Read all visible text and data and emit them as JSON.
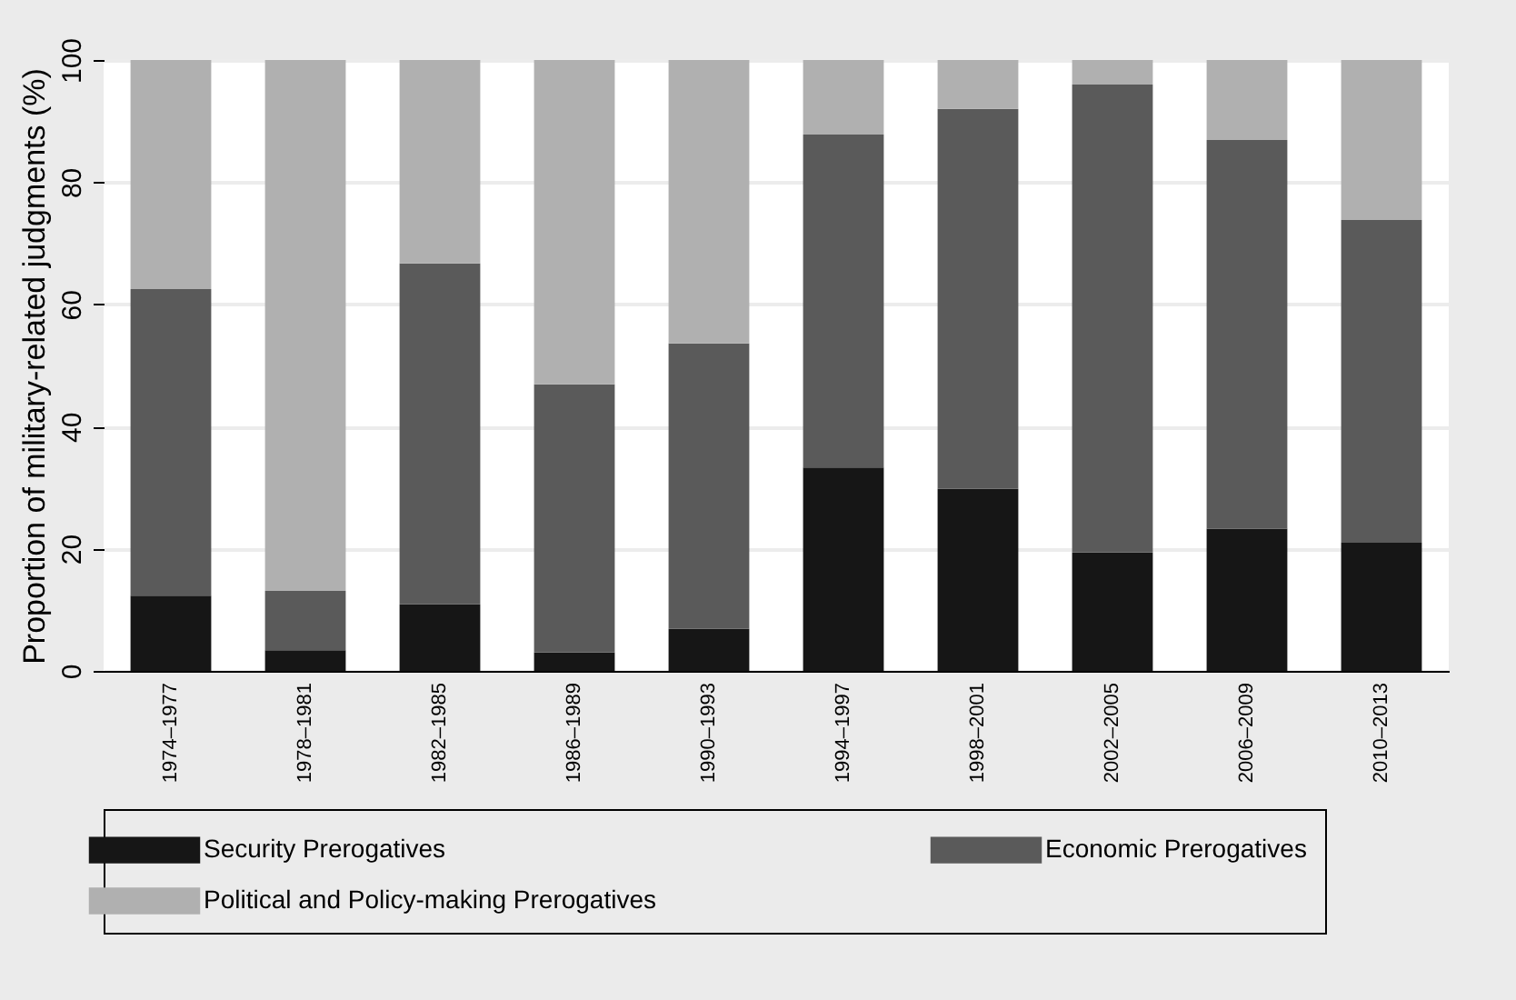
{
  "chart_data": {
    "type": "bar",
    "stacked": true,
    "ylabel": "Proportion of military-related judgments (%)",
    "categories": [
      "1974–1977",
      "1978–1981",
      "1982–1985",
      "1986–1989",
      "1990–1993",
      "1994–1997",
      "1998–2001",
      "2002–2005",
      "2006–2009",
      "2010–2013"
    ],
    "series": [
      {
        "name": "Security Prerogatives",
        "color": "#161616",
        "values": [
          12.3,
          3.4,
          10.9,
          3.0,
          6.9,
          33.3,
          29.8,
          19.4,
          23.3,
          21.0
        ]
      },
      {
        "name": "Economic Prerogatives",
        "color": "#5a5a5a",
        "values": [
          50.2,
          9.7,
          55.8,
          43.9,
          46.7,
          54.5,
          62.2,
          76.6,
          63.6,
          52.8
        ]
      },
      {
        "name": "Political and Policy-making Prerogatives",
        "color": "#b0b0b0",
        "values": [
          37.5,
          86.9,
          33.3,
          53.1,
          46.4,
          12.2,
          8.0,
          4.0,
          13.1,
          26.2
        ]
      }
    ],
    "ylim": [
      0,
      100
    ],
    "yticks": [
      0,
      20,
      40,
      60,
      80,
      100
    ],
    "grid": "y",
    "legend": "bottom"
  }
}
